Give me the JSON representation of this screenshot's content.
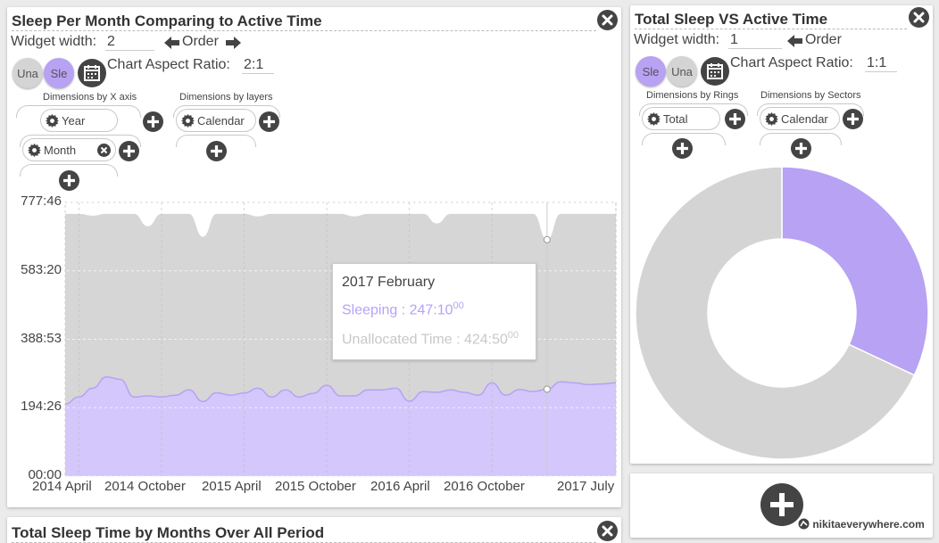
{
  "widget1": {
    "title": "Sleep Per Month Comparing to Active Time",
    "width_label": "Widget width:",
    "width_value": "2",
    "order_label": "Order",
    "aspect_label": "Chart Aspect Ratio:",
    "aspect_value": "2:1",
    "toggle1": "Una",
    "toggle2": "Sle",
    "dims_x_label": "Dimensions by X axis",
    "dims_layers_label": "Dimensions by layers",
    "pill_year": "Year",
    "pill_month": "Month",
    "pill_calendar": "Calendar",
    "tooltip": {
      "title": "2017 February",
      "sleep_label": "Sleeping : 247:10",
      "sleep_sup": "00",
      "unalloc_label": "Unallocated Time : 424:50",
      "unalloc_sup": "00"
    }
  },
  "widget2": {
    "title": "Total Sleep VS Active Time",
    "width_label": "Widget width:",
    "width_value": "1",
    "order_label": "Order",
    "aspect_label": "Chart Aspect Ratio:",
    "aspect_value": "1:1",
    "toggle1": "Sle",
    "toggle2": "Una",
    "dims_rings_label": "Dimensions by Rings",
    "dims_sectors_label": "Dimensions by Sectors",
    "pill_total": "Total",
    "pill_calendar": "Calendar"
  },
  "widget3": {
    "title": "Total Sleep Time by Months Over All Period"
  },
  "watermark": "nikitaeverywhere.com",
  "colors": {
    "sleep": "#b7a2f4",
    "unallocated": "#d4d4d4",
    "dark": "#444444"
  },
  "chart_data": [
    {
      "type": "area",
      "stacked": true,
      "x_tick_labels": [
        "2014 April",
        "2014 October",
        "2015 April",
        "2015 October",
        "2016 April",
        "2016 October",
        "2017 July"
      ],
      "y_tick_labels": [
        "777:46",
        "583:20",
        "388:53",
        "194:26",
        "00:00"
      ],
      "ylim_hours": [
        0,
        777.77
      ],
      "months": [
        "2014-03",
        "2014-04",
        "2014-05",
        "2014-06",
        "2014-07",
        "2014-08",
        "2014-09",
        "2014-10",
        "2014-11",
        "2014-12",
        "2015-01",
        "2015-02",
        "2015-03",
        "2015-04",
        "2015-05",
        "2015-06",
        "2015-07",
        "2015-08",
        "2015-09",
        "2015-10",
        "2015-11",
        "2015-12",
        "2016-01",
        "2016-02",
        "2016-03",
        "2016-04",
        "2016-05",
        "2016-06",
        "2016-07",
        "2016-08",
        "2016-09",
        "2016-10",
        "2016-11",
        "2016-12",
        "2017-01",
        "2017-02",
        "2017-03",
        "2017-04",
        "2017-05",
        "2017-06",
        "2017-07"
      ],
      "series": [
        {
          "name": "Sleeping",
          "values_hours": [
            205,
            225,
            250,
            282,
            275,
            225,
            228,
            225,
            230,
            245,
            212,
            237,
            230,
            236,
            250,
            225,
            245,
            225,
            235,
            258,
            228,
            228,
            245,
            245,
            250,
            213,
            240,
            238,
            245,
            238,
            230,
            265,
            230,
            246,
            240,
            247,
            268,
            265,
            260,
            262,
            265
          ]
        },
        {
          "name": "Unallocated Time",
          "total_values_hours": [
            745,
            745,
            740,
            745,
            745,
            745,
            710,
            745,
            745,
            745,
            680,
            745,
            745,
            745,
            738,
            745,
            745,
            745,
            745,
            745,
            745,
            738,
            745,
            745,
            745,
            745,
            745,
            718,
            745,
            745,
            745,
            745,
            745,
            745,
            745,
            672,
            745,
            745,
            745,
            745,
            745
          ],
          "values_hours": [
            540,
            520,
            490,
            463,
            470,
            520,
            482,
            520,
            515,
            500,
            468,
            508,
            515,
            509,
            488,
            520,
            500,
            520,
            510,
            487,
            517,
            510,
            500,
            500,
            495,
            532,
            505,
            480,
            500,
            507,
            515,
            480,
            515,
            499,
            505,
            424.83,
            477,
            480,
            485,
            483,
            480
          ]
        }
      ]
    },
    {
      "type": "pie",
      "donut": true,
      "series": [
        {
          "name": "Sleeping",
          "share": 0.32
        },
        {
          "name": "Unallocated Time",
          "share": 0.68
        }
      ]
    }
  ]
}
